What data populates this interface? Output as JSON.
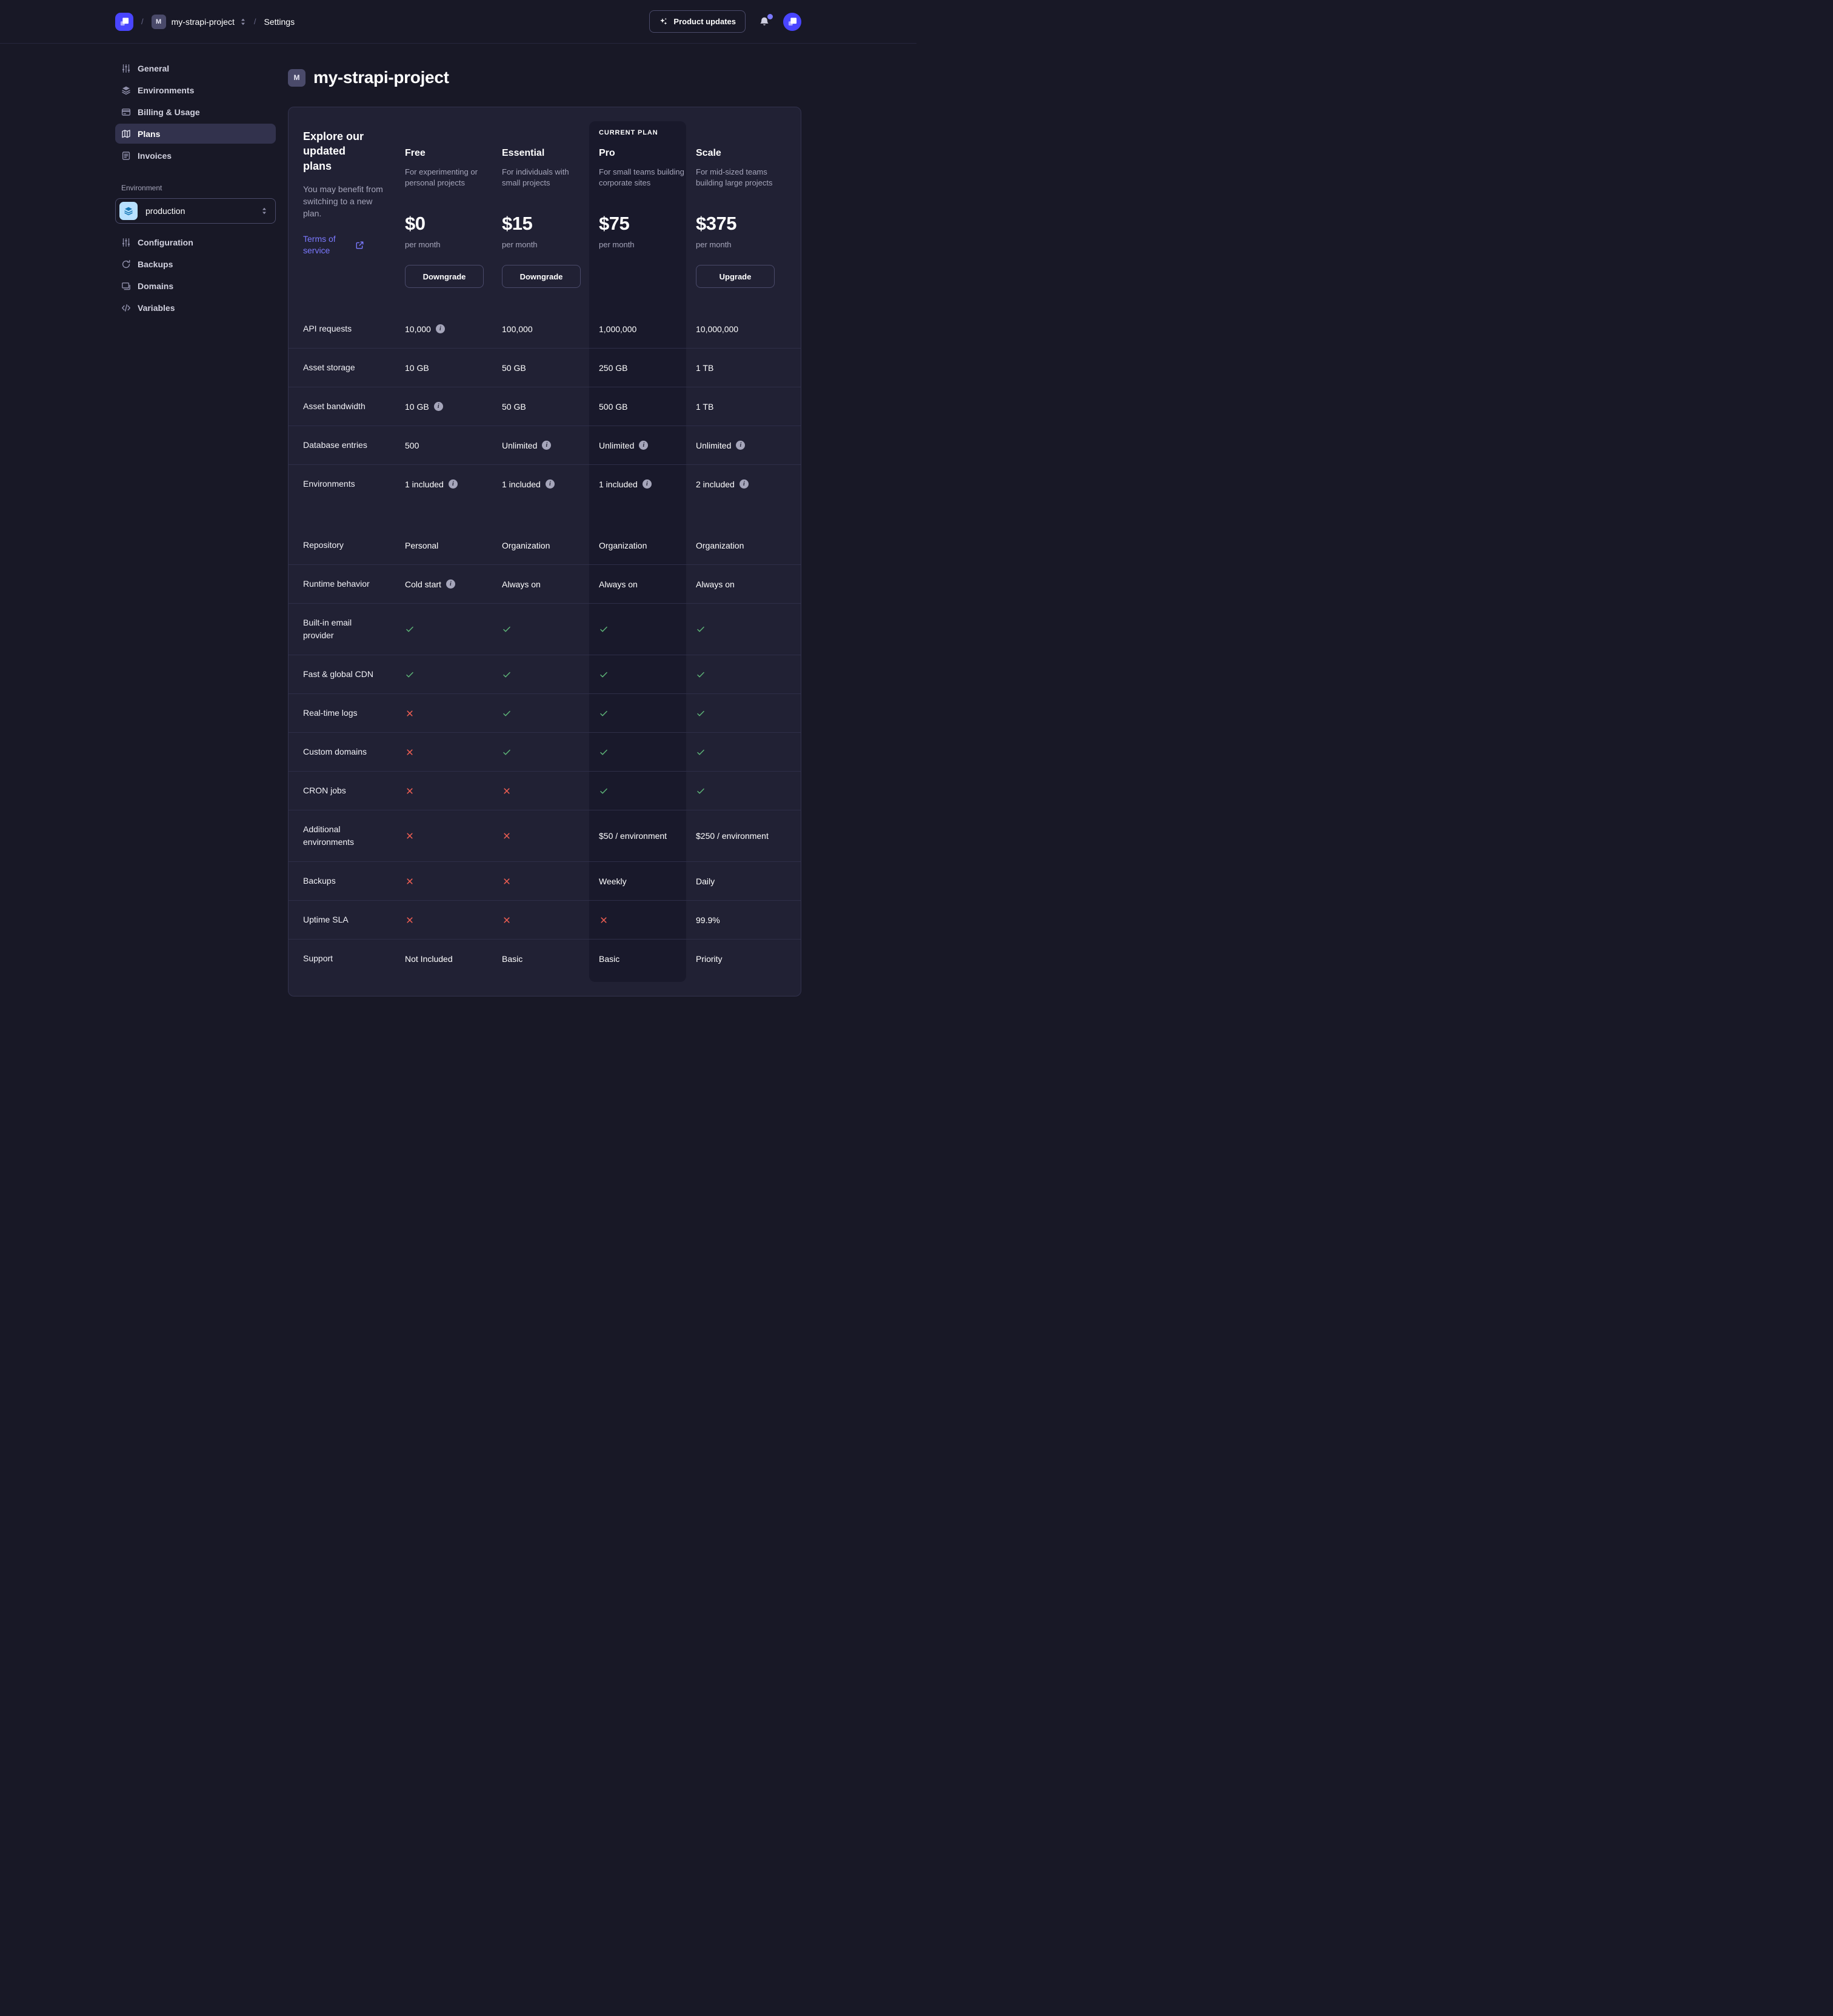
{
  "topbar": {
    "logo_icon": "strapi-logo",
    "breadcrumb": {
      "separator": "/",
      "project_initial": "M",
      "project": "my-strapi-project",
      "section": "Settings"
    },
    "product_updates": {
      "label": "Product updates",
      "icon": "sparkles"
    },
    "notifications": {
      "icon": "bell",
      "has_unread_dot": true
    },
    "avatar_icon": "strapi-logo"
  },
  "sidebar": {
    "items": [
      {
        "label": "General",
        "icon": "sliders",
        "active": false
      },
      {
        "label": "Environments",
        "icon": "layers",
        "active": false
      },
      {
        "label": "Billing & Usage",
        "icon": "credit-card",
        "active": false
      },
      {
        "label": "Plans",
        "icon": "map",
        "active": true
      },
      {
        "label": "Invoices",
        "icon": "receipt",
        "active": false
      }
    ],
    "environment_label": "Environment",
    "environment_select": {
      "value": "production",
      "icon": "layers"
    },
    "environment_items": [
      {
        "label": "Configuration",
        "icon": "sliders"
      },
      {
        "label": "Backups",
        "icon": "refresh"
      },
      {
        "label": "Domains",
        "icon": "stack"
      },
      {
        "label": "Variables",
        "icon": "code"
      }
    ]
  },
  "page": {
    "title_initial": "M",
    "title": "my-strapi-project"
  },
  "plans_card": {
    "intro": {
      "title": "Explore our updated plans",
      "subtitle": "You may benefit from switching to a new plan.",
      "link_label": "Terms of service",
      "link_icon": "external-link"
    },
    "current_plan_label": "CURRENT PLAN",
    "plans": [
      {
        "name": "Free",
        "description": "For experimenting or personal projects",
        "price": "$0",
        "period": "per month",
        "action": "Downgrade",
        "current": false
      },
      {
        "name": "Essential",
        "description": "For individuals with small projects",
        "price": "$15",
        "period": "per month",
        "action": "Downgrade",
        "current": false
      },
      {
        "name": "Pro",
        "description": "For small teams building corporate sites",
        "price": "$75",
        "period": "per month",
        "action": null,
        "current": true
      },
      {
        "name": "Scale",
        "description": "For mid-sized teams building large projects",
        "price": "$375",
        "period": "per month",
        "action": "Upgrade",
        "current": false
      }
    ],
    "features": [
      {
        "label": "API requests",
        "cells": [
          {
            "type": "text",
            "text": "10,000",
            "info": true
          },
          {
            "type": "text",
            "text": "100,000"
          },
          {
            "type": "text",
            "text": "1,000,000"
          },
          {
            "type": "text",
            "text": "10,000,000"
          }
        ]
      },
      {
        "label": "Asset storage",
        "cells": [
          {
            "type": "text",
            "text": "10 GB"
          },
          {
            "type": "text",
            "text": "50 GB"
          },
          {
            "type": "text",
            "text": "250 GB"
          },
          {
            "type": "text",
            "text": "1 TB"
          }
        ]
      },
      {
        "label": "Asset bandwidth",
        "cells": [
          {
            "type": "text",
            "text": "10 GB",
            "info": true
          },
          {
            "type": "text",
            "text": "50 GB"
          },
          {
            "type": "text",
            "text": "500 GB"
          },
          {
            "type": "text",
            "text": "1 TB"
          }
        ]
      },
      {
        "label": "Database entries",
        "cells": [
          {
            "type": "text",
            "text": "500"
          },
          {
            "type": "text",
            "text": "Unlimited",
            "info": true
          },
          {
            "type": "text",
            "text": "Unlimited",
            "info": true
          },
          {
            "type": "text",
            "text": "Unlimited",
            "info": true
          }
        ]
      },
      {
        "label": "Environments",
        "cells": [
          {
            "type": "text",
            "text": "1 included",
            "info": true
          },
          {
            "type": "text",
            "text": "1 included",
            "info": true
          },
          {
            "type": "text",
            "text": "1 included",
            "info": true
          },
          {
            "type": "text",
            "text": "2 included",
            "info": true
          }
        ]
      },
      {
        "label": "Repository",
        "section_break": true,
        "cells": [
          {
            "type": "text",
            "text": "Personal"
          },
          {
            "type": "text",
            "text": "Organization"
          },
          {
            "type": "text",
            "text": "Organization"
          },
          {
            "type": "text",
            "text": "Organization"
          }
        ]
      },
      {
        "label": "Runtime behavior",
        "cells": [
          {
            "type": "text",
            "text": "Cold start",
            "info": true
          },
          {
            "type": "text",
            "text": "Always on"
          },
          {
            "type": "text",
            "text": "Always on"
          },
          {
            "type": "text",
            "text": "Always on"
          }
        ]
      },
      {
        "label": "Built-in email provider",
        "cells": [
          {
            "type": "check"
          },
          {
            "type": "check"
          },
          {
            "type": "check"
          },
          {
            "type": "check"
          }
        ]
      },
      {
        "label": "Fast & global CDN",
        "cells": [
          {
            "type": "check"
          },
          {
            "type": "check"
          },
          {
            "type": "check"
          },
          {
            "type": "check"
          }
        ]
      },
      {
        "label": "Real-time logs",
        "cells": [
          {
            "type": "cross"
          },
          {
            "type": "check"
          },
          {
            "type": "check"
          },
          {
            "type": "check"
          }
        ]
      },
      {
        "label": "Custom domains",
        "cells": [
          {
            "type": "cross"
          },
          {
            "type": "check"
          },
          {
            "type": "check"
          },
          {
            "type": "check"
          }
        ]
      },
      {
        "label": "CRON jobs",
        "cells": [
          {
            "type": "cross"
          },
          {
            "type": "cross"
          },
          {
            "type": "check"
          },
          {
            "type": "check"
          }
        ]
      },
      {
        "label": "Additional environments",
        "cells": [
          {
            "type": "cross"
          },
          {
            "type": "cross"
          },
          {
            "type": "text",
            "text": "$50 / environment"
          },
          {
            "type": "text",
            "text": "$250 / environment"
          }
        ]
      },
      {
        "label": "Backups",
        "cells": [
          {
            "type": "cross"
          },
          {
            "type": "cross"
          },
          {
            "type": "text",
            "text": "Weekly"
          },
          {
            "type": "text",
            "text": "Daily"
          }
        ]
      },
      {
        "label": "Uptime SLA",
        "cells": [
          {
            "type": "cross"
          },
          {
            "type": "cross"
          },
          {
            "type": "cross"
          },
          {
            "type": "text",
            "text": "99.9%"
          }
        ]
      },
      {
        "label": "Support",
        "cells": [
          {
            "type": "text",
            "text": "Not Included"
          },
          {
            "type": "text",
            "text": "Basic"
          },
          {
            "type": "text",
            "text": "Basic"
          },
          {
            "type": "text",
            "text": "Priority"
          }
        ]
      }
    ]
  },
  "colors": {
    "background": "#181826",
    "surface": "#212134",
    "surface_border": "#32324d",
    "divider": "#2e2e48",
    "current_plan_panel": "#19192b",
    "accent": "#4945ff",
    "link": "#7b79ff",
    "muted_text": "#a5a5ba",
    "success": "#5cb176",
    "danger": "#ee5e52",
    "env_tile_bg": "#b8e1ff",
    "env_tile_icon": "#1577b5",
    "outline_border": "#4a4a6a"
  }
}
